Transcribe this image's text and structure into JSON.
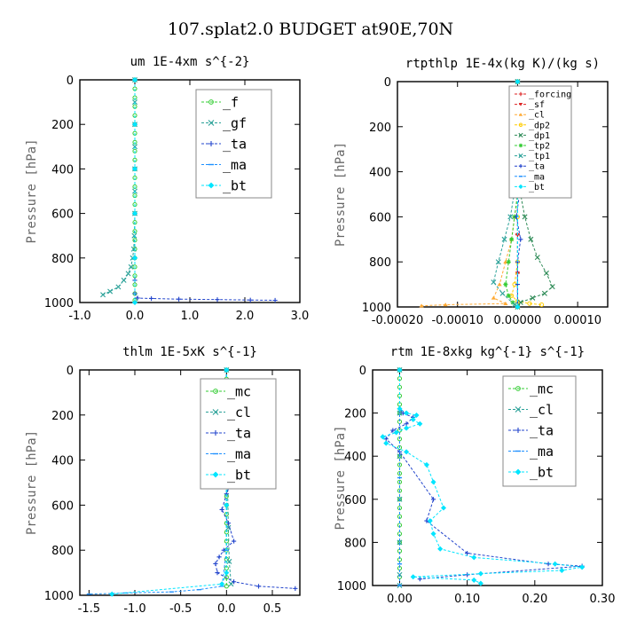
{
  "figure_title": "107.splat2.0  BUDGET at90E,70N",
  "chart_data": [
    {
      "type": "line",
      "title": "um  1E-4xm s^{-2}",
      "ylabel": "Pressure [hPa]",
      "xlim": [
        -1.0,
        3.0
      ],
      "ylim": [
        1000,
        0
      ],
      "xticks": [
        -1.0,
        0.0,
        1.0,
        2.0,
        3.0
      ],
      "xtick_labels": [
        "-1.0",
        "0.0",
        "1.0",
        "2.0",
        "3.0"
      ],
      "yticks": [
        0,
        200,
        400,
        600,
        800,
        1000
      ],
      "ytick_labels": [
        "0",
        "200",
        "400",
        "600",
        "800",
        "1000"
      ],
      "legend_position": "top-right",
      "series": [
        {
          "name": "_f",
          "color": "#33cc33",
          "marker": "o",
          "x": [
            0,
            0,
            0,
            0,
            0,
            0,
            0,
            0,
            0,
            0,
            0,
            0,
            0,
            0,
            0,
            0,
            0,
            0,
            0,
            0,
            0,
            0,
            0,
            0,
            0,
            0
          ],
          "y": [
            0,
            40,
            80,
            120,
            160,
            200,
            240,
            280,
            320,
            360,
            400,
            440,
            480,
            520,
            560,
            600,
            640,
            680,
            720,
            760,
            800,
            840,
            880,
            920,
            960,
            990
          ]
        },
        {
          "name": "_gf",
          "color": "#2aa198",
          "marker": "x",
          "x": [
            0,
            0,
            0,
            0,
            0,
            0,
            0,
            -0.01,
            -0.02,
            -0.04,
            -0.07,
            -0.12,
            -0.2,
            -0.3,
            -0.45,
            -0.58
          ],
          "y": [
            0,
            100,
            200,
            300,
            400,
            500,
            600,
            700,
            760,
            800,
            840,
            870,
            900,
            930,
            950,
            965
          ]
        },
        {
          "name": "_ta",
          "color": "#2244cc",
          "marker": "+",
          "x": [
            0,
            0,
            0,
            0,
            0,
            0,
            0,
            0.05,
            0.3,
            0.8,
            1.5,
            2.1,
            2.55
          ],
          "y": [
            0,
            200,
            400,
            600,
            800,
            900,
            960,
            980,
            982,
            985,
            987,
            989,
            990
          ]
        },
        {
          "name": "_ma",
          "color": "#1e90ff",
          "marker": "_",
          "x": [
            0,
            0,
            0,
            0,
            0,
            0
          ],
          "y": [
            0,
            200,
            400,
            600,
            800,
            1000
          ]
        },
        {
          "name": "_bt",
          "color": "#00e5ff",
          "marker": "D",
          "x": [
            0,
            0,
            0,
            0,
            0,
            0
          ],
          "y": [
            0,
            200,
            400,
            600,
            800,
            1000
          ]
        }
      ]
    },
    {
      "type": "line",
      "title": "rtpthlp  1E-4x(kg K)/(kg s)",
      "ylabel": "Pressure [hPa]",
      "xlim": [
        -0.0002,
        0.00015
      ],
      "ylim": [
        1000,
        0
      ],
      "xticks": [
        -0.0002,
        -0.0001,
        0.0,
        0.0001
      ],
      "xtick_labels": [
        "-0.00020",
        "-0.00010",
        "0.00000",
        "0.00010"
      ],
      "yticks": [
        0,
        200,
        400,
        600,
        800,
        1000
      ],
      "ytick_labels": [
        "0",
        "200",
        "400",
        "600",
        "800",
        "1000"
      ],
      "legend_position": "top-right",
      "series": [
        {
          "name": "_forcing",
          "color": "#dd2222",
          "marker": "+",
          "x": [
            0,
            0,
            0,
            0,
            0,
            0,
            0
          ],
          "y": [
            0,
            170,
            340,
            510,
            680,
            850,
            1000
          ]
        },
        {
          "name": "_sf",
          "color": "#dd2222",
          "marker": "v",
          "x": [
            0,
            0,
            0,
            0,
            0,
            0,
            0
          ],
          "y": [
            0,
            170,
            340,
            510,
            680,
            850,
            1000
          ]
        },
        {
          "name": "_cl",
          "color": "#ffaa33",
          "marker": "^",
          "x": [
            0,
            0,
            -5e-06,
            -1e-05,
            -2e-05,
            -3e-05,
            -4e-05,
            -2e-05,
            -0.00012,
            -0.00016
          ],
          "y": [
            0,
            500,
            600,
            700,
            800,
            900,
            960,
            985,
            990,
            995
          ]
        },
        {
          "name": "_dp2",
          "color": "#ffcc00",
          "marker": "o",
          "x": [
            0,
            0,
            0,
            -5e-06,
            -1e-05,
            0,
            2e-05,
            4e-05
          ],
          "y": [
            0,
            600,
            800,
            900,
            950,
            975,
            985,
            990
          ]
        },
        {
          "name": "_dp1",
          "color": "#2e8b57",
          "marker": "x",
          "x": [
            0,
            2e-06,
            5e-06,
            1.2e-05,
            2.2e-05,
            3.3e-05,
            4.8e-05,
            5.8e-05,
            4.5e-05,
            2.5e-05,
            5e-06,
            0
          ],
          "y": [
            0,
            400,
            500,
            600,
            700,
            780,
            850,
            910,
            940,
            960,
            980,
            1000
          ]
        },
        {
          "name": "_tp2",
          "color": "#33cc33",
          "marker": "*",
          "x": [
            0,
            0,
            -5e-06,
            -1e-05,
            -1.5e-05,
            -2e-05,
            -1.5e-05,
            -8e-06,
            0
          ],
          "y": [
            0,
            500,
            600,
            700,
            800,
            900,
            950,
            980,
            1000
          ]
        },
        {
          "name": "_tp1",
          "color": "#2aa198",
          "marker": "x",
          "x": [
            0,
            -2e-06,
            -6e-06,
            -1.2e-05,
            -2.2e-05,
            -3.2e-05,
            -4e-05,
            -2.5e-05,
            -5e-06
          ],
          "y": [
            0,
            400,
            500,
            600,
            700,
            800,
            890,
            940,
            990
          ]
        },
        {
          "name": "_ta",
          "color": "#2244cc",
          "marker": "+",
          "x": [
            0,
            0,
            -5e-06,
            3e-06,
            -2e-06,
            5e-06,
            0,
            0,
            0
          ],
          "y": [
            0,
            400,
            450,
            500,
            600,
            700,
            800,
            900,
            1000
          ]
        },
        {
          "name": "_ma",
          "color": "#1e90ff",
          "marker": "_",
          "x": [
            0,
            0,
            0
          ],
          "y": [
            0,
            500,
            1000
          ]
        },
        {
          "name": "_bt",
          "color": "#00e5ff",
          "marker": "D",
          "x": [
            0,
            0,
            0
          ],
          "y": [
            0,
            500,
            1000
          ]
        }
      ]
    },
    {
      "type": "line",
      "title": "thlm  1E-5xK s^{-1}",
      "ylabel": "Pressure [hPa]",
      "xlim": [
        -1.6,
        0.8
      ],
      "ylim": [
        1000,
        0
      ],
      "xticks": [
        -1.5,
        -1.0,
        -0.5,
        0.0,
        0.5
      ],
      "xtick_labels": [
        "-1.5",
        "-1.0",
        "-0.5",
        "0.0",
        "0.5"
      ],
      "yticks": [
        0,
        200,
        400,
        600,
        800,
        1000
      ],
      "ytick_labels": [
        "0",
        "200",
        "400",
        "600",
        "800",
        "1000"
      ],
      "legend_position": "top-right",
      "series": [
        {
          "name": "_mc",
          "color": "#33cc33",
          "marker": "o",
          "x": [
            0,
            0,
            0,
            0,
            0,
            0,
            0,
            0,
            0,
            0,
            0,
            0,
            0,
            0,
            0,
            0,
            0,
            0,
            0,
            0,
            0,
            0,
            0,
            0,
            0
          ],
          "y": [
            0,
            40,
            80,
            120,
            160,
            200,
            240,
            280,
            320,
            360,
            400,
            440,
            480,
            520,
            560,
            600,
            640,
            680,
            720,
            760,
            800,
            840,
            880,
            920,
            960
          ]
        },
        {
          "name": "_cl",
          "color": "#2aa198",
          "marker": "x",
          "x": [
            0,
            0,
            0.01,
            0.02,
            0.01,
            0.02,
            0.03,
            0.05
          ],
          "y": [
            0,
            150,
            200,
            300,
            500,
            700,
            850,
            950
          ]
        },
        {
          "name": "_ta",
          "color": "#2244cc",
          "marker": "+",
          "x": [
            0,
            0,
            -0.02,
            -0.05,
            -0.02,
            -0.05,
            -0.02,
            0,
            -0.02,
            0.02,
            -0.05,
            0.05,
            0,
            -0.05,
            0.02,
            0.08,
            -0.03,
            -0.08,
            -0.12,
            -0.1,
            0.08,
            0.35,
            0.75
          ],
          "y": [
            0,
            150,
            180,
            200,
            230,
            270,
            300,
            330,
            360,
            400,
            450,
            500,
            550,
            620,
            680,
            760,
            800,
            830,
            860,
            900,
            940,
            960,
            970
          ]
        },
        {
          "name": "_ma",
          "color": "#1e90ff",
          "marker": "_",
          "x": [
            0,
            0,
            0,
            -0.05,
            -0.3,
            -0.6,
            -1.1,
            -1.5
          ],
          "y": [
            0,
            400,
            800,
            960,
            975,
            985,
            990,
            995
          ]
        },
        {
          "name": "_bt",
          "color": "#00e5ff",
          "marker": "D",
          "x": [
            0,
            0,
            0,
            -0.05,
            -1.25
          ],
          "y": [
            0,
            600,
            900,
            950,
            995
          ]
        }
      ]
    },
    {
      "type": "line",
      "title": "rtm  1E-8xkg kg^{-1} s^{-1}",
      "ylabel": "Pressure [hPa]",
      "xlim": [
        -0.04,
        0.3
      ],
      "ylim": [
        1000,
        0
      ],
      "xticks": [
        0.0,
        0.1,
        0.2,
        0.3
      ],
      "xtick_labels": [
        "0.00",
        "0.10",
        "0.20",
        "0.30"
      ],
      "yticks": [
        0,
        200,
        400,
        600,
        800,
        1000
      ],
      "ytick_labels": [
        "0",
        "200",
        "400",
        "600",
        "800",
        "1000"
      ],
      "legend_position": "top-right",
      "series": [
        {
          "name": "_mc",
          "color": "#33cc33",
          "marker": "o",
          "x": [
            0,
            0,
            0,
            0,
            0,
            0,
            0,
            0,
            0,
            0,
            0,
            0,
            0,
            0,
            0,
            0,
            0,
            0,
            0,
            0,
            0,
            0,
            0,
            0,
            0
          ],
          "y": [
            0,
            40,
            80,
            120,
            160,
            200,
            240,
            280,
            320,
            360,
            400,
            440,
            480,
            520,
            560,
            600,
            640,
            680,
            720,
            760,
            800,
            840,
            880,
            920,
            960
          ]
        },
        {
          "name": "_cl",
          "color": "#2aa198",
          "marker": "x",
          "x": [
            0,
            0,
            0,
            0,
            0,
            0,
            0
          ],
          "y": [
            0,
            200,
            400,
            600,
            800,
            950,
            1000
          ]
        },
        {
          "name": "_ta",
          "color": "#2244cc",
          "marker": "+",
          "x": [
            0,
            0,
            0.005,
            0.02,
            0.01,
            -0.01,
            -0.02,
            0,
            0.05,
            0.04,
            0.1,
            0.22,
            0.27,
            0.1,
            0.03
          ],
          "y": [
            0,
            180,
            200,
            220,
            250,
            280,
            320,
            380,
            600,
            700,
            850,
            900,
            910,
            950,
            970
          ]
        },
        {
          "name": "_ma",
          "color": "#1e90ff",
          "marker": "_",
          "x": [
            0,
            0,
            0,
            0
          ],
          "y": [
            0,
            500,
            900,
            1000
          ]
        },
        {
          "name": "_bt",
          "color": "#00e5ff",
          "marker": "D",
          "x": [
            0,
            0,
            0.01,
            0.025,
            0.02,
            0.03,
            0.01,
            -0.005,
            -0.025,
            -0.02,
            0.01,
            0.04,
            0.05,
            0.065,
            0.045,
            0.05,
            0.06,
            0.11,
            0.23,
            0.27,
            0.24,
            0.12,
            0.02,
            0.11,
            0.12
          ],
          "y": [
            0,
            180,
            200,
            210,
            230,
            250,
            270,
            290,
            310,
            340,
            380,
            440,
            520,
            640,
            700,
            760,
            830,
            870,
            900,
            915,
            930,
            945,
            960,
            975,
            990
          ]
        }
      ]
    }
  ]
}
